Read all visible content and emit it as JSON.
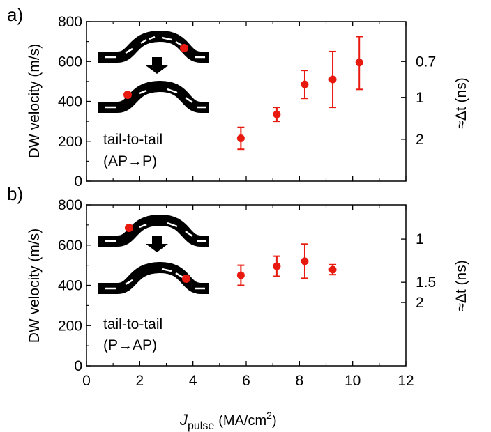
{
  "figure": {
    "x_label_main": "J",
    "x_label_sub": "pulse",
    "x_label_units": "(MA/cm",
    "x_label_sup": "2",
    "x_label_close": ")"
  },
  "chart_data": [
    {
      "panel_label": "a)",
      "type": "scatter",
      "ylabel": "DW velocity (m/s)",
      "y2label": "≈Δt (ns)",
      "annotation_lines": [
        "tail-to-tail",
        "(AP→P)"
      ],
      "xlim": [
        0,
        12
      ],
      "ylim": [
        0,
        800
      ],
      "x_ticks": [
        0,
        2,
        4,
        6,
        8,
        10,
        12
      ],
      "y_ticks": [
        0,
        200,
        400,
        600,
        800
      ],
      "y2_ticks": [
        {
          "label": "0.7",
          "velocity": 600
        },
        {
          "label": "1",
          "velocity": 420
        },
        {
          "label": "2",
          "velocity": 210
        }
      ],
      "marker_color": "#e8190e",
      "points": [
        {
          "x": 5.8,
          "y": 215,
          "err_low": 55,
          "err_high": 55
        },
        {
          "x": 7.15,
          "y": 335,
          "err_low": 35,
          "err_high": 35
        },
        {
          "x": 8.2,
          "y": 485,
          "err_low": 70,
          "err_high": 70
        },
        {
          "x": 9.25,
          "y": 510,
          "err_low": 140,
          "err_high": 140
        },
        {
          "x": 10.25,
          "y": 595,
          "err_low": 135,
          "err_high": 130
        }
      ],
      "inset_mode": "AP-to-P"
    },
    {
      "panel_label": "b)",
      "type": "scatter",
      "ylabel": "DW velocity (m/s)",
      "y2label": "≈Δt (ns)",
      "annotation_lines": [
        "tail-to-tail",
        "(P→AP)"
      ],
      "xlim": [
        0,
        12
      ],
      "ylim": [
        0,
        800
      ],
      "x_ticks": [
        0,
        2,
        4,
        6,
        8,
        10,
        12
      ],
      "y_ticks": [
        0,
        200,
        400,
        600,
        800
      ],
      "y2_ticks": [
        {
          "label": "1",
          "velocity": 630
        },
        {
          "label": "1.5",
          "velocity": 415
        },
        {
          "label": "2",
          "velocity": 315
        }
      ],
      "marker_color": "#e8190e",
      "points": [
        {
          "x": 5.8,
          "y": 450,
          "err_low": 50,
          "err_high": 50
        },
        {
          "x": 7.15,
          "y": 495,
          "err_low": 50,
          "err_high": 50
        },
        {
          "x": 8.2,
          "y": 520,
          "err_low": 85,
          "err_high": 85
        },
        {
          "x": 9.25,
          "y": 478,
          "err_low": 25,
          "err_high": 25
        }
      ],
      "inset_mode": "P-to-AP"
    }
  ]
}
